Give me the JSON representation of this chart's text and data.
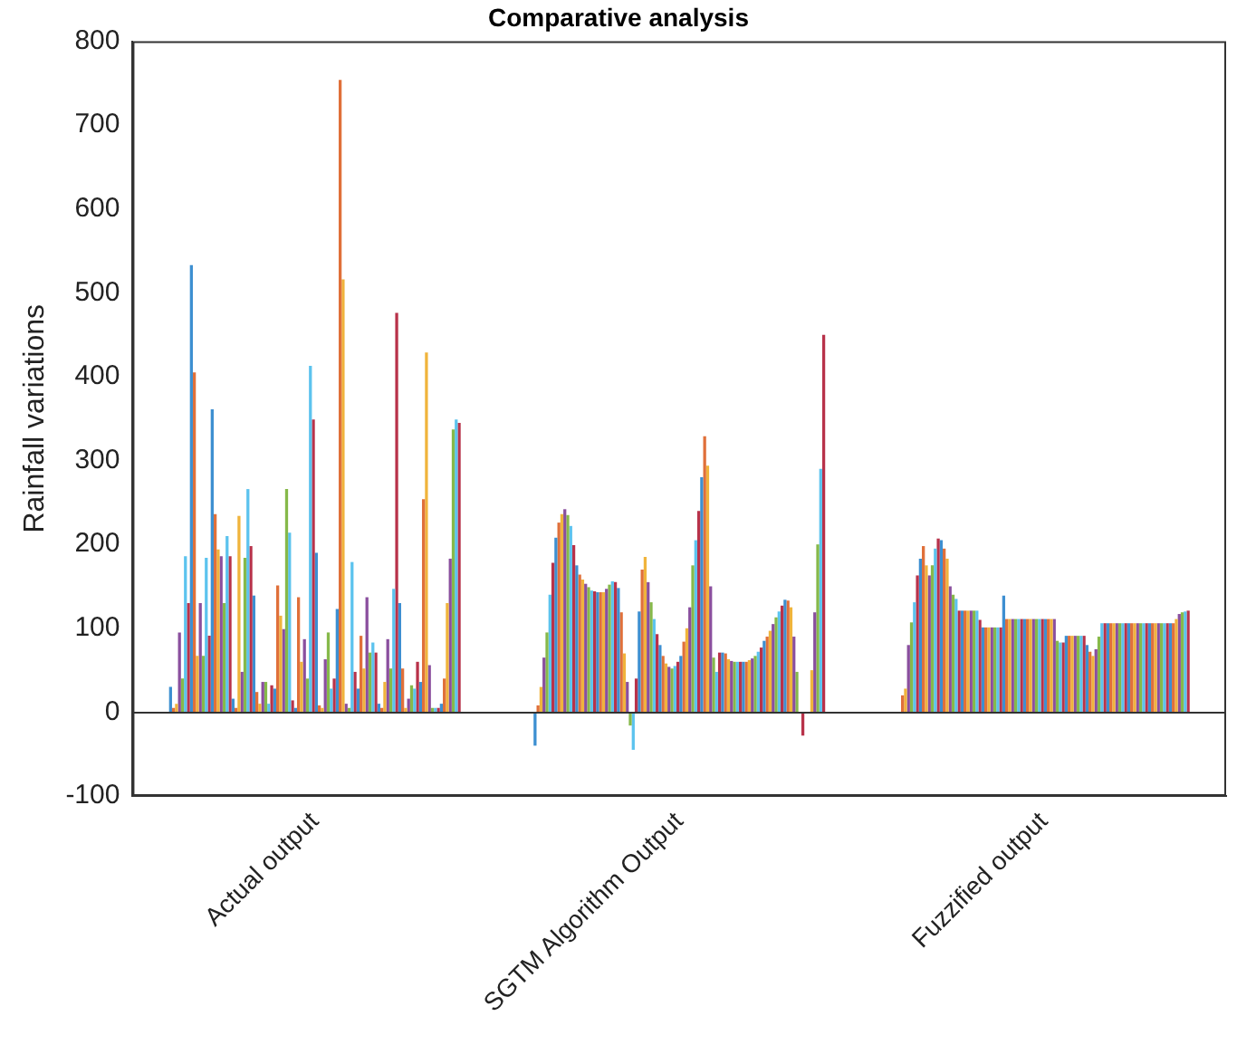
{
  "chart_data": {
    "type": "bar",
    "title": "Comparative analysis",
    "ylabel": "Rainfall variations",
    "categories": [
      "Actual output",
      "SGTM Algorithm Output",
      "Fuzzified output"
    ],
    "ylim": [
      -100,
      800
    ],
    "yticks": [
      -100,
      0,
      100,
      200,
      300,
      400,
      500,
      600,
      700,
      800
    ],
    "series": [
      {
        "color": "#3d8fd1",
        "values": [
          30,
          -40,
          0
        ]
      },
      {
        "color": "#e0703a",
        "values": [
          5,
          8,
          20
        ]
      },
      {
        "color": "#f0b43c",
        "values": [
          10,
          30,
          28
        ]
      },
      {
        "color": "#8a4f9e",
        "values": [
          95,
          65,
          80
        ]
      },
      {
        "color": "#86b94a",
        "values": [
          40,
          95,
          107
        ]
      },
      {
        "color": "#5cc3ee",
        "values": [
          186,
          140,
          131
        ]
      },
      {
        "color": "#b8324a",
        "values": [
          130,
          178,
          163
        ]
      },
      {
        "color": "#3d8fd1",
        "values": [
          533,
          208,
          183
        ]
      },
      {
        "color": "#e0703a",
        "values": [
          405,
          226,
          198
        ]
      },
      {
        "color": "#f0b43c",
        "values": [
          67,
          236,
          175
        ]
      },
      {
        "color": "#8a4f9e",
        "values": [
          130,
          242,
          163
        ]
      },
      {
        "color": "#86b94a",
        "values": [
          67,
          235,
          175
        ]
      },
      {
        "color": "#5cc3ee",
        "values": [
          184,
          222,
          195
        ]
      },
      {
        "color": "#b8324a",
        "values": [
          91,
          199,
          207
        ]
      },
      {
        "color": "#3d8fd1",
        "values": [
          361,
          175,
          205
        ]
      },
      {
        "color": "#e0703a",
        "values": [
          236,
          164,
          195
        ]
      },
      {
        "color": "#f0b43c",
        "values": [
          194,
          158,
          183
        ]
      },
      {
        "color": "#8a4f9e",
        "values": [
          186,
          153,
          150
        ]
      },
      {
        "color": "#86b94a",
        "values": [
          130,
          149,
          140
        ]
      },
      {
        "color": "#5cc3ee",
        "values": [
          210,
          145,
          135
        ]
      },
      {
        "color": "#b8324a",
        "values": [
          186,
          144,
          121
        ]
      },
      {
        "color": "#3d8fd1",
        "values": [
          16,
          143,
          121
        ]
      },
      {
        "color": "#e0703a",
        "values": [
          5,
          143,
          121
        ]
      },
      {
        "color": "#f0b43c",
        "values": [
          234,
          143,
          121
        ]
      },
      {
        "color": "#8a4f9e",
        "values": [
          48,
          147,
          121
        ]
      },
      {
        "color": "#86b94a",
        "values": [
          184,
          152,
          121
        ]
      },
      {
        "color": "#5cc3ee",
        "values": [
          266,
          156,
          121
        ]
      },
      {
        "color": "#b8324a",
        "values": [
          198,
          155,
          110
        ]
      },
      {
        "color": "#3d8fd1",
        "values": [
          139,
          148,
          101
        ]
      },
      {
        "color": "#e0703a",
        "values": [
          24,
          119,
          101
        ]
      },
      {
        "color": "#f0b43c",
        "values": [
          10,
          70,
          101
        ]
      },
      {
        "color": "#8a4f9e",
        "values": [
          36,
          36,
          101
        ]
      },
      {
        "color": "#86b94a",
        "values": [
          36,
          -16,
          101
        ]
      },
      {
        "color": "#5cc3ee",
        "values": [
          10,
          -45,
          101
        ]
      },
      {
        "color": "#b8324a",
        "values": [
          32,
          40,
          101
        ]
      },
      {
        "color": "#3d8fd1",
        "values": [
          28,
          120,
          139
        ]
      },
      {
        "color": "#e0703a",
        "values": [
          151,
          170,
          111
        ]
      },
      {
        "color": "#f0b43c",
        "values": [
          115,
          185,
          111
        ]
      },
      {
        "color": "#8a4f9e",
        "values": [
          99,
          155,
          111
        ]
      },
      {
        "color": "#86b94a",
        "values": [
          266,
          131,
          111
        ]
      },
      {
        "color": "#5cc3ee",
        "values": [
          214,
          111,
          111
        ]
      },
      {
        "color": "#b8324a",
        "values": [
          14,
          93,
          111
        ]
      },
      {
        "color": "#3d8fd1",
        "values": [
          5,
          80,
          111
        ]
      },
      {
        "color": "#e0703a",
        "values": [
          137,
          67,
          111
        ]
      },
      {
        "color": "#f0b43c",
        "values": [
          60,
          58,
          111
        ]
      },
      {
        "color": "#8a4f9e",
        "values": [
          87,
          54,
          111
        ]
      },
      {
        "color": "#86b94a",
        "values": [
          40,
          52,
          111
        ]
      },
      {
        "color": "#5cc3ee",
        "values": [
          413,
          55,
          111
        ]
      },
      {
        "color": "#b8324a",
        "values": [
          349,
          60,
          111
        ]
      },
      {
        "color": "#3d8fd1",
        "values": [
          190,
          67,
          111
        ]
      },
      {
        "color": "#e0703a",
        "values": [
          8,
          84,
          111
        ]
      },
      {
        "color": "#f0b43c",
        "values": [
          5,
          100,
          111
        ]
      },
      {
        "color": "#8a4f9e",
        "values": [
          63,
          125,
          111
        ]
      },
      {
        "color": "#86b94a",
        "values": [
          95,
          175,
          85
        ]
      },
      {
        "color": "#5cc3ee",
        "values": [
          28,
          205,
          83
        ]
      },
      {
        "color": "#b8324a",
        "values": [
          40,
          240,
          83
        ]
      },
      {
        "color": "#3d8fd1",
        "values": [
          123,
          280,
          91
        ]
      },
      {
        "color": "#e0703a",
        "values": [
          754,
          329,
          91
        ]
      },
      {
        "color": "#f0b43c",
        "values": [
          516,
          294,
          91
        ]
      },
      {
        "color": "#8a4f9e",
        "values": [
          10,
          150,
          91
        ]
      },
      {
        "color": "#86b94a",
        "values": [
          5,
          65,
          91
        ]
      },
      {
        "color": "#5cc3ee",
        "values": [
          179,
          48,
          91
        ]
      },
      {
        "color": "#b8324a",
        "values": [
          48,
          71,
          91
        ]
      },
      {
        "color": "#3d8fd1",
        "values": [
          28,
          71,
          80
        ]
      },
      {
        "color": "#e0703a",
        "values": [
          91,
          70,
          72
        ]
      },
      {
        "color": "#f0b43c",
        "values": [
          52,
          63,
          67
        ]
      },
      {
        "color": "#8a4f9e",
        "values": [
          137,
          61,
          75
        ]
      },
      {
        "color": "#86b94a",
        "values": [
          71,
          60,
          90
        ]
      },
      {
        "color": "#5cc3ee",
        "values": [
          83,
          60,
          106
        ]
      },
      {
        "color": "#b8324a",
        "values": [
          71,
          60,
          106
        ]
      },
      {
        "color": "#3d8fd1",
        "values": [
          10,
          60,
          106
        ]
      },
      {
        "color": "#e0703a",
        "values": [
          5,
          60,
          106
        ]
      },
      {
        "color": "#f0b43c",
        "values": [
          36,
          62,
          106
        ]
      },
      {
        "color": "#8a4f9e",
        "values": [
          87,
          64,
          106
        ]
      },
      {
        "color": "#86b94a",
        "values": [
          52,
          67,
          106
        ]
      },
      {
        "color": "#5cc3ee",
        "values": [
          147,
          72,
          106
        ]
      },
      {
        "color": "#b8324a",
        "values": [
          476,
          77,
          106
        ]
      },
      {
        "color": "#3d8fd1",
        "values": [
          130,
          85,
          106
        ]
      },
      {
        "color": "#e0703a",
        "values": [
          52,
          90,
          106
        ]
      },
      {
        "color": "#f0b43c",
        "values": [
          5,
          97,
          106
        ]
      },
      {
        "color": "#8a4f9e",
        "values": [
          16,
          105,
          106
        ]
      },
      {
        "color": "#86b94a",
        "values": [
          32,
          113,
          106
        ]
      },
      {
        "color": "#5cc3ee",
        "values": [
          28,
          120,
          106
        ]
      },
      {
        "color": "#b8324a",
        "values": [
          60,
          127,
          106
        ]
      },
      {
        "color": "#3d8fd1",
        "values": [
          36,
          134,
          106
        ]
      },
      {
        "color": "#e0703a",
        "values": [
          254,
          133,
          106
        ]
      },
      {
        "color": "#f0b43c",
        "values": [
          429,
          125,
          106
        ]
      },
      {
        "color": "#8a4f9e",
        "values": [
          56,
          90,
          106
        ]
      },
      {
        "color": "#86b94a",
        "values": [
          5,
          48,
          106
        ]
      },
      {
        "color": "#5cc3ee",
        "values": [
          5,
          0,
          106
        ]
      },
      {
        "color": "#b8324a",
        "values": [
          5,
          -28,
          106
        ]
      },
      {
        "color": "#3d8fd1",
        "values": [
          10,
          0,
          106
        ]
      },
      {
        "color": "#e0703a",
        "values": [
          40,
          0,
          106
        ]
      },
      {
        "color": "#f0b43c",
        "values": [
          130,
          50,
          111
        ]
      },
      {
        "color": "#8a4f9e",
        "values": [
          183,
          119,
          117
        ]
      },
      {
        "color": "#86b94a",
        "values": [
          337,
          200,
          119
        ]
      },
      {
        "color": "#5cc3ee",
        "values": [
          349,
          290,
          120
        ]
      },
      {
        "color": "#b8324a",
        "values": [
          345,
          450,
          121
        ]
      }
    ]
  }
}
